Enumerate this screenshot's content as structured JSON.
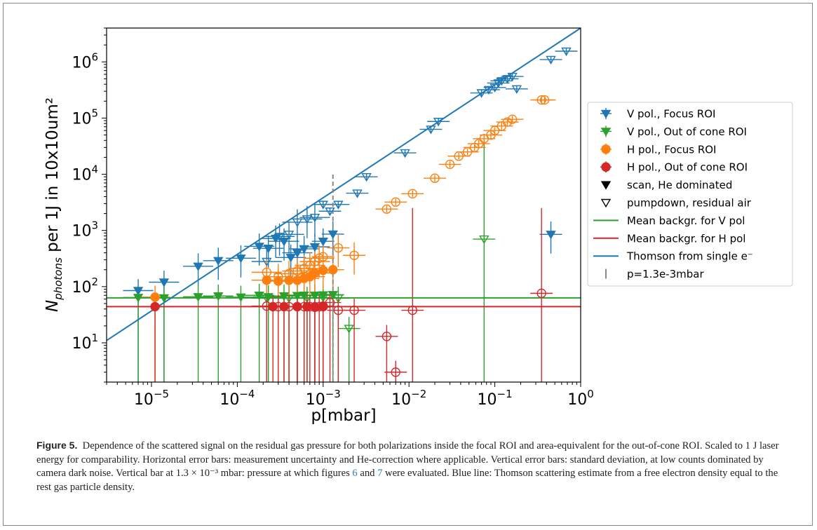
{
  "figure": {
    "label": "Figure 5.",
    "caption": {
      "part1": "Dependence of the scattered signal on the residual gas pressure for both polarizations inside the focal ROI and area-equivalent for the out-of-cone ROI. Scaled to 1 J laser energy for comparability. Horizontal error bars: measurement uncertainty and He-correction where applicable. Vertical error bars: standard deviation, at low counts dominated by camera dark noise. Vertical bar at ",
      "math": "1.3 × 10⁻³",
      "part2": " mbar: pressure at which figures ",
      "ref1": "6",
      "and": " and ",
      "ref2": "7",
      "part3": " were evaluated. Blue line: Thomson scattering estimate from a free electron density equal to the rest gas particle density."
    }
  },
  "chart_data": {
    "type": "scatter",
    "xlabel": "p[mbar]",
    "ylabel_main": "N",
    "ylabel_sub": "photons",
    "ylabel_rest": " per 1J in 10x10um²",
    "xscale": "log",
    "yscale": "log",
    "xlim": [
      3e-06,
      1.0
    ],
    "ylim": [
      2.0,
      4000000.0
    ],
    "x_ticks": [
      {
        "v": 1e-05,
        "m": "10",
        "e": "−5"
      },
      {
        "v": 0.0001,
        "m": "10",
        "e": "−4"
      },
      {
        "v": 0.001,
        "m": "10",
        "e": "−3"
      },
      {
        "v": 0.01,
        "m": "10",
        "e": "−2"
      },
      {
        "v": 0.1,
        "m": "10",
        "e": "−1"
      },
      {
        "v": 1.0,
        "m": "10",
        "e": "0"
      }
    ],
    "y_ticks": [
      {
        "v": 10,
        "m": "10",
        "e": "1"
      },
      {
        "v": 100,
        "m": "10",
        "e": "2"
      },
      {
        "v": 1000,
        "m": "10",
        "e": "3"
      },
      {
        "v": 10000,
        "m": "10",
        "e": "4"
      },
      {
        "v": 100000,
        "m": "10",
        "e": "5"
      },
      {
        "v": 1000000,
        "m": "10",
        "e": "6"
      }
    ],
    "legend_position": "center-right outside",
    "legend": [
      {
        "label": "V pol., Focus ROI",
        "kind": "tri",
        "color": "#1f77b4"
      },
      {
        "label": "V pol., Out of cone ROI",
        "kind": "tri",
        "color": "#2ca02c"
      },
      {
        "label": "H pol., Focus ROI",
        "kind": "dot",
        "color": "#ff7f0e"
      },
      {
        "label": "H pol., Out of cone ROI",
        "kind": "dot",
        "color": "#d62728"
      },
      {
        "label": "scan, He dominated",
        "kind": "filled-tri",
        "color": "#000000"
      },
      {
        "label": "pumpdown, residual air",
        "kind": "open-tri",
        "color": "#000000"
      },
      {
        "label": "Mean backgr. for V pol",
        "kind": "line",
        "color": "#2ca02c"
      },
      {
        "label": "Mean backgr. for H pol",
        "kind": "line",
        "color": "#d62728"
      },
      {
        "label": "Thomson from single e⁻",
        "kind": "line",
        "color": "#1f77b4"
      },
      {
        "label": "p=1.3e-3mbar",
        "kind": "vbar",
        "color": "#888888"
      }
    ],
    "lines": {
      "mean_bg_V": 63,
      "mean_bg_H": 44,
      "thomson": {
        "x": [
          3e-06,
          1.0
        ],
        "y": [
          11,
          4000000
        ]
      },
      "vline_p": 0.0013,
      "vline_y": [
        2.0,
        10000
      ]
    },
    "series": [
      {
        "name": "V pol., Focus ROI",
        "color": "#1f77b4",
        "marker": "tri",
        "scan": [
          [
            7e-06,
            85
          ],
          [
            1.4e-05,
            120
          ],
          [
            3.5e-05,
            230
          ],
          [
            6e-05,
            290
          ],
          [
            0.00011,
            320
          ],
          [
            0.00018,
            520
          ],
          [
            0.00023,
            480
          ],
          [
            0.00028,
            720
          ],
          [
            0.00035,
            640
          ],
          [
            0.00042,
            330
          ],
          [
            0.0005,
            400
          ],
          [
            0.0006,
            470
          ],
          [
            0.0008,
            510
          ],
          [
            0.001,
            640
          ],
          [
            0.0013,
            860
          ],
          [
            0.45,
            850
          ]
        ],
        "pumpdown": [
          [
            0.00022,
            280
          ],
          [
            0.00031,
            780
          ],
          [
            0.0004,
            850
          ],
          [
            0.0005,
            1400
          ],
          [
            0.00065,
            1600
          ],
          [
            0.0008,
            1700
          ],
          [
            0.001,
            2900
          ],
          [
            0.0012,
            2200
          ],
          [
            0.0015,
            2900
          ],
          [
            0.0025,
            4600
          ],
          [
            0.0032,
            9000
          ],
          [
            0.009,
            24000
          ],
          [
            0.018,
            63000
          ],
          [
            0.022,
            87000
          ],
          [
            0.07,
            280000
          ],
          [
            0.085,
            320000
          ],
          [
            0.1,
            350000
          ],
          [
            0.11,
            420000
          ],
          [
            0.12,
            460000
          ],
          [
            0.14,
            500000
          ],
          [
            0.16,
            550000
          ],
          [
            0.18,
            330000
          ],
          [
            0.45,
            1100000
          ],
          [
            0.68,
            1550000
          ]
        ]
      },
      {
        "name": "V pol., Out of cone ROI",
        "color": "#2ca02c",
        "marker": "tri",
        "scan": [
          [
            7e-06,
            64
          ],
          [
            1.4e-05,
            63
          ],
          [
            3.5e-05,
            66
          ],
          [
            6e-05,
            68
          ],
          [
            0.00011,
            65
          ],
          [
            0.00018,
            70
          ],
          [
            0.00023,
            66
          ],
          [
            0.00035,
            68
          ],
          [
            0.0005,
            69
          ],
          [
            0.0006,
            70
          ],
          [
            0.0008,
            70
          ],
          [
            0.001,
            71
          ],
          [
            0.0013,
            72
          ]
        ],
        "pumpdown": [
          [
            0.00022,
            62
          ],
          [
            0.0004,
            62
          ],
          [
            0.00065,
            62
          ],
          [
            0.001,
            64
          ],
          [
            0.0015,
            62
          ],
          [
            0.002,
            18
          ],
          [
            0.075,
            700
          ]
        ]
      },
      {
        "name": "H pol., Focus ROI",
        "color": "#ff7f0e",
        "marker": "dot",
        "scan": [
          [
            1.1e-05,
            65
          ],
          [
            0.00022,
            130
          ],
          [
            0.0003,
            125
          ],
          [
            0.0004,
            130
          ],
          [
            0.0005,
            130
          ],
          [
            0.0006,
            140
          ],
          [
            0.0007,
            150
          ],
          [
            0.0008,
            175
          ],
          [
            0.001,
            195
          ],
          [
            0.0013,
            200
          ]
        ],
        "pumpdown": [
          [
            0.00022,
            180
          ],
          [
            0.0003,
            150
          ],
          [
            0.0004,
            170
          ],
          [
            0.0005,
            190
          ],
          [
            0.0006,
            210
          ],
          [
            0.0007,
            240
          ],
          [
            0.0008,
            280
          ],
          [
            0.0009,
            320
          ],
          [
            0.001,
            340
          ],
          [
            0.0015,
            490
          ],
          [
            0.0023,
            360
          ],
          [
            0.0055,
            2400
          ],
          [
            0.007,
            3200
          ],
          [
            0.011,
            4500
          ],
          [
            0.02,
            8500
          ],
          [
            0.03,
            15000
          ],
          [
            0.038,
            21000
          ],
          [
            0.048,
            25000
          ],
          [
            0.058,
            30000
          ],
          [
            0.065,
            35000
          ],
          [
            0.075,
            43000
          ],
          [
            0.09,
            50000
          ],
          [
            0.1,
            60000
          ],
          [
            0.12,
            72000
          ],
          [
            0.14,
            85000
          ],
          [
            0.16,
            95000
          ],
          [
            0.35,
            210000
          ],
          [
            0.38,
            210000
          ]
        ]
      },
      {
        "name": "H pol., Out of cone ROI",
        "color": "#d62728",
        "marker": "dot",
        "scan": [
          [
            1.1e-05,
            44
          ],
          [
            0.00026,
            44
          ],
          [
            0.00035,
            44
          ],
          [
            0.0005,
            44
          ],
          [
            0.00065,
            44
          ],
          [
            0.0008,
            44
          ],
          [
            0.001,
            44
          ]
        ],
        "pumpdown": [
          [
            0.00022,
            45
          ],
          [
            0.0003,
            44
          ],
          [
            0.0004,
            44
          ],
          [
            0.0005,
            44
          ],
          [
            0.0006,
            44
          ],
          [
            0.0007,
            44
          ],
          [
            0.0008,
            43
          ],
          [
            0.0009,
            44
          ],
          [
            0.001,
            45
          ],
          [
            0.0012,
            52
          ],
          [
            0.0015,
            38
          ],
          [
            0.0023,
            38
          ],
          [
            0.0055,
            13
          ],
          [
            0.007,
            3
          ],
          [
            0.011,
            38
          ],
          [
            0.35,
            76
          ]
        ]
      }
    ]
  }
}
